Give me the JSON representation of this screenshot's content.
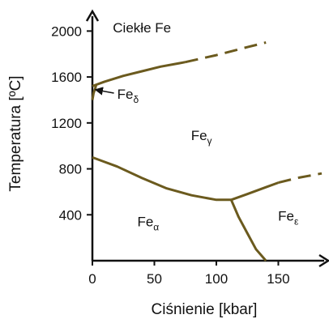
{
  "chart_data": {
    "type": "line",
    "title": "",
    "xlabel": "Ciśnienie [kbar]",
    "ylabel": "Temperatura [ºC]",
    "xlim": [
      0,
      185
    ],
    "ylim": [
      0,
      2200
    ],
    "xticks": [
      "0",
      "50",
      "100",
      "150"
    ],
    "yticks": [
      "400",
      "800",
      "1200",
      "1600",
      "2000"
    ],
    "line_color": "#6b5a1e",
    "regions": [
      {
        "name": "liquid",
        "label": "Ciekłe Fe",
        "x": 40,
        "y": 1990
      },
      {
        "name": "gamma",
        "base": "Fe",
        "sub": "γ",
        "x": 88,
        "y": 1050
      },
      {
        "name": "alpha",
        "base": "Fe",
        "sub": "α",
        "x": 45,
        "y": 300
      },
      {
        "name": "epsilon",
        "base": "Fe",
        "sub": "ε",
        "x": 158,
        "y": 350
      }
    ],
    "annotation": {
      "base": "Fe",
      "sub": "δ",
      "point": [
        1,
        1490
      ],
      "text_at": [
        20,
        1410
      ]
    },
    "series": [
      {
        "id": "liquidus-solid",
        "style": "solid",
        "x": [
          0,
          10,
          25,
          40,
          55,
          70,
          75
        ],
        "y": [
          1520,
          1560,
          1610,
          1650,
          1690,
          1720,
          1730
        ]
      },
      {
        "id": "liquidus-dashed",
        "style": "dashed",
        "x": [
          75,
          100,
          125,
          140
        ],
        "y": [
          1730,
          1790,
          1860,
          1900
        ]
      },
      {
        "id": "alpha-gamma",
        "style": "solid",
        "x": [
          0,
          20,
          40,
          60,
          80,
          100,
          112
        ],
        "y": [
          900,
          820,
          720,
          630,
          570,
          530,
          530
        ]
      },
      {
        "id": "gamma-epsilon-solid",
        "style": "solid",
        "x": [
          112,
          125,
          140,
          150
        ],
        "y": [
          530,
          580,
          640,
          680
        ]
      },
      {
        "id": "gamma-epsilon-dashed",
        "style": "dashed",
        "x": [
          150,
          165,
          185
        ],
        "y": [
          680,
          720,
          760
        ]
      },
      {
        "id": "alpha-epsilon",
        "style": "solid",
        "x": [
          112,
          118,
          125,
          132,
          140
        ],
        "y": [
          530,
          380,
          240,
          100,
          0
        ]
      },
      {
        "id": "delta-boundary",
        "style": "solid",
        "x": [
          0,
          1,
          2,
          3
        ],
        "y": [
          1400,
          1460,
          1490,
          1530
        ]
      }
    ]
  }
}
